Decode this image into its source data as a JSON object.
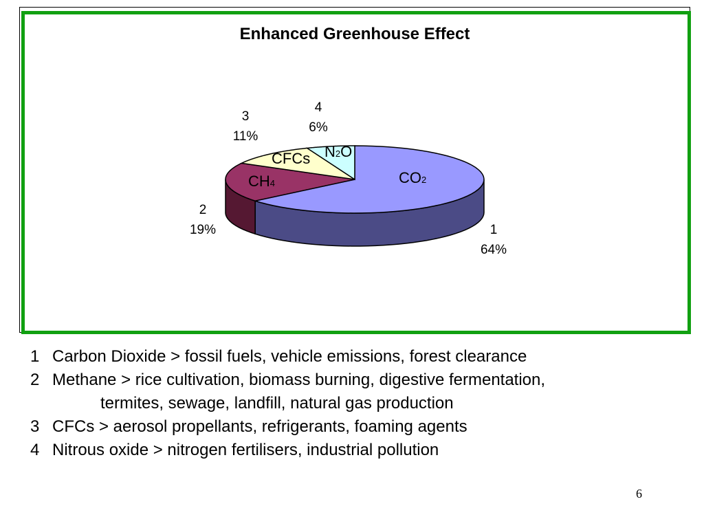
{
  "chart_data": {
    "type": "pie",
    "title": "Enhanced Greenhouse Effect",
    "categories": [
      "1",
      "2",
      "3",
      "4"
    ],
    "values": [
      64,
      19,
      11,
      6
    ],
    "percent_labels": [
      "64%",
      "19%",
      "11%",
      "6%"
    ],
    "slice_labels": [
      {
        "main": "CO",
        "sub": "2",
        "post": ""
      },
      {
        "main": "CH",
        "sub": "4",
        "post": ""
      },
      {
        "main": "CFCs",
        "sub": "",
        "post": ""
      },
      {
        "main": "N",
        "sub": "2",
        "post": "O"
      }
    ],
    "colors": {
      "top": [
        "#9999ff",
        "#993366",
        "#ffffcc",
        "#ccffff"
      ],
      "side": [
        "#4b4b86",
        "#551832",
        "#8a8a6e",
        "#6f8a8a"
      ]
    },
    "style": "3d-exploded-none"
  },
  "legend": {
    "lines": [
      {
        "num": "1",
        "text": "Carbon Dioxide > fossil fuels, vehicle emissions, forest clearance"
      },
      {
        "num": "2",
        "text": "Methane > rice cultivation, biomass burning, digestive fermentation,"
      },
      {
        "num": "",
        "text": "termites, sewage, landfill, natural gas production"
      },
      {
        "num": "3",
        "text": "CFCs > aerosol propellants, refrigerants, foaming agents"
      },
      {
        "num": "4",
        "text": "Nitrous oxide > nitrogen fertilisers, industrial pollution"
      }
    ]
  },
  "slide_number": "6"
}
